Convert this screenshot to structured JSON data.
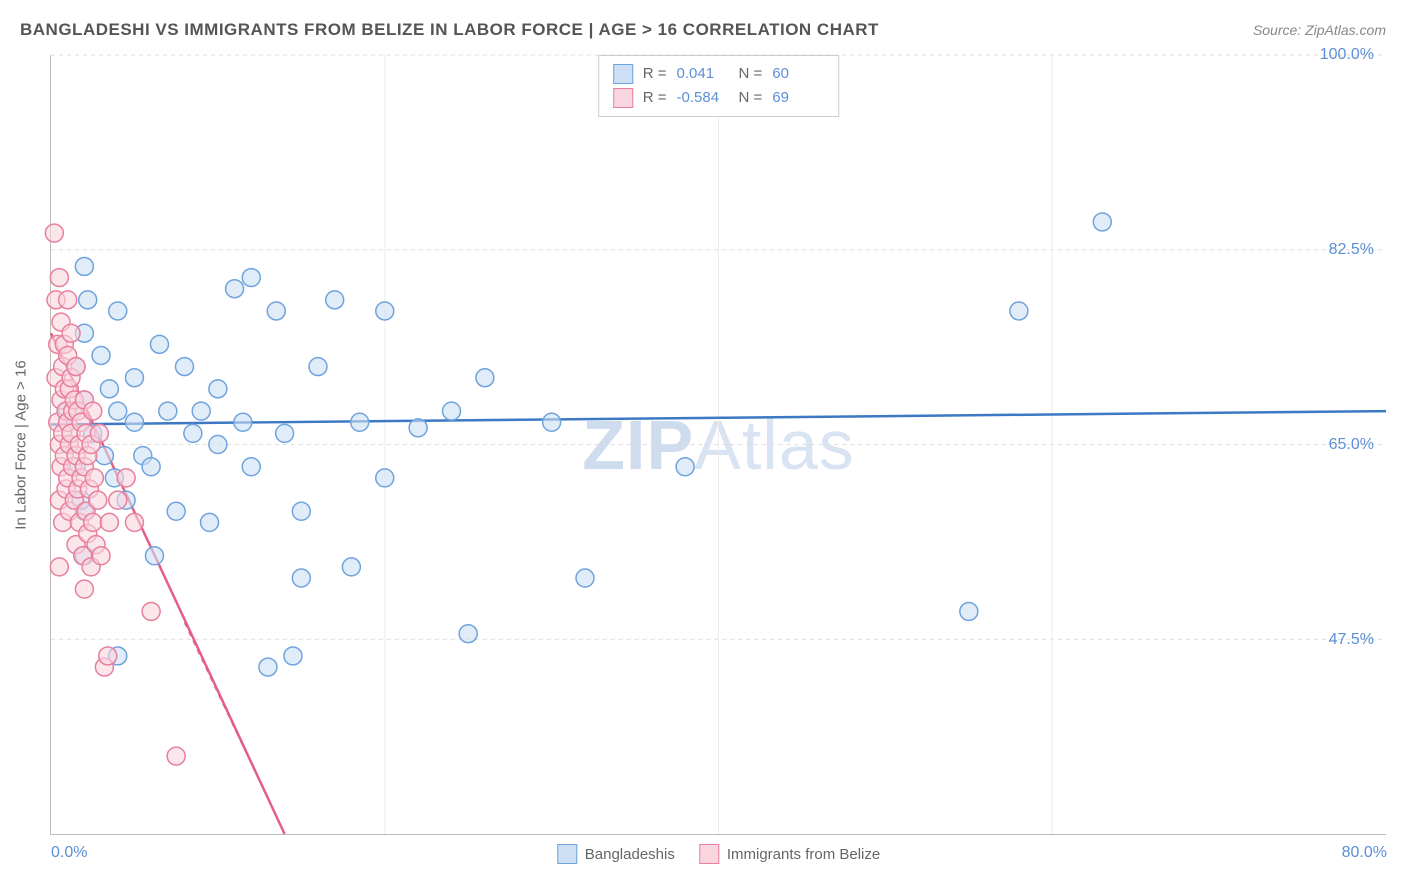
{
  "header": {
    "title": "BANGLADESHI VS IMMIGRANTS FROM BELIZE IN LABOR FORCE | AGE > 16 CORRELATION CHART",
    "source_label": "Source: ZipAtlas.com"
  },
  "watermark": {
    "prefix": "ZIP",
    "suffix": "Atlas"
  },
  "chart": {
    "type": "scatter",
    "y_axis_title": "In Labor Force | Age > 16",
    "background_color": "#ffffff",
    "grid_color": "#dddddd",
    "axis_color": "#bbbbbb",
    "tick_label_color": "#5b8fd6",
    "xlim": [
      0,
      80
    ],
    "ylim": [
      30,
      100
    ],
    "x_ticks": [
      0,
      80
    ],
    "x_tick_labels": [
      "0.0%",
      "80.0%"
    ],
    "y_ticks": [
      47.5,
      65.0,
      82.5,
      100.0
    ],
    "y_tick_labels": [
      "47.5%",
      "65.0%",
      "82.5%",
      "100.0%"
    ],
    "x_gridlines": [
      20,
      40,
      60
    ],
    "marker_radius": 9,
    "marker_stroke_width": 1.5,
    "line_width": 2.5,
    "series": [
      {
        "name": "Bangladeshis",
        "fill": "#cde0f5",
        "stroke": "#6fa3dd",
        "line_color": "#3c78c3",
        "R": "0.041",
        "N": "60",
        "trend": {
          "x1": 0,
          "y1": 66.8,
          "x2": 80,
          "y2": 68.0
        },
        "points": [
          [
            1,
            67
          ],
          [
            1,
            68
          ],
          [
            1.5,
            72
          ],
          [
            1.5,
            63
          ],
          [
            2,
            81
          ],
          [
            2,
            75
          ],
          [
            2,
            69
          ],
          [
            2,
            59
          ],
          [
            2,
            55
          ],
          [
            2.5,
            66
          ],
          [
            3,
            73
          ],
          [
            3.2,
            64
          ],
          [
            3.5,
            70
          ],
          [
            4,
            68
          ],
          [
            4,
            77
          ],
          [
            4,
            46
          ],
          [
            4.5,
            60
          ],
          [
            5,
            67
          ],
          [
            5,
            71
          ],
          [
            5.5,
            64
          ],
          [
            6,
            63
          ],
          [
            6.5,
            74
          ],
          [
            7,
            68
          ],
          [
            7.5,
            59
          ],
          [
            8,
            72
          ],
          [
            8.5,
            66
          ],
          [
            9,
            68
          ],
          [
            9.5,
            58
          ],
          [
            10,
            70
          ],
          [
            10,
            65
          ],
          [
            11,
            79
          ],
          [
            11.5,
            67
          ],
          [
            12,
            63
          ],
          [
            12,
            80
          ],
          [
            13,
            45
          ],
          [
            13.5,
            77
          ],
          [
            14,
            66
          ],
          [
            15,
            59
          ],
          [
            15,
            53
          ],
          [
            16,
            72
          ],
          [
            17,
            78
          ],
          [
            18,
            54
          ],
          [
            18.5,
            67
          ],
          [
            20,
            77
          ],
          [
            20,
            62
          ],
          [
            22,
            66.5
          ],
          [
            24,
            68
          ],
          [
            25,
            48
          ],
          [
            26,
            71
          ],
          [
            30,
            67
          ],
          [
            32,
            53
          ],
          [
            38,
            63
          ],
          [
            55,
            50
          ],
          [
            58,
            77
          ],
          [
            63,
            85
          ],
          [
            1.8,
            60
          ],
          [
            2.2,
            78
          ],
          [
            3.8,
            62
          ],
          [
            6.2,
            55
          ],
          [
            14.5,
            46
          ]
        ]
      },
      {
        "name": "Immigrants from Belize",
        "fill": "#f9d6df",
        "stroke": "#e87f9c",
        "line_color": "#e35f85",
        "R": "-0.584",
        "N": "69",
        "trend": {
          "x1": 0,
          "y1": 75,
          "x2": 14,
          "y2": 30
        },
        "trend_dashed_after": {
          "x1": 8,
          "y1": 49,
          "x2": 14,
          "y2": 30
        },
        "points": [
          [
            0.2,
            84
          ],
          [
            0.3,
            78
          ],
          [
            0.3,
            71
          ],
          [
            0.4,
            67
          ],
          [
            0.4,
            74
          ],
          [
            0.5,
            80
          ],
          [
            0.5,
            65
          ],
          [
            0.5,
            60
          ],
          [
            0.6,
            76
          ],
          [
            0.6,
            69
          ],
          [
            0.6,
            63
          ],
          [
            0.7,
            72
          ],
          [
            0.7,
            66
          ],
          [
            0.7,
            58
          ],
          [
            0.8,
            70
          ],
          [
            0.8,
            64
          ],
          [
            0.8,
            74
          ],
          [
            0.9,
            68
          ],
          [
            0.9,
            61
          ],
          [
            1.0,
            73
          ],
          [
            1.0,
            67
          ],
          [
            1.0,
            62
          ],
          [
            1.1,
            70
          ],
          [
            1.1,
            65
          ],
          [
            1.1,
            59
          ],
          [
            1.2,
            71
          ],
          [
            1.2,
            66
          ],
          [
            1.2,
            75
          ],
          [
            1.3,
            68
          ],
          [
            1.3,
            63
          ],
          [
            1.4,
            69
          ],
          [
            1.4,
            60
          ],
          [
            1.5,
            72
          ],
          [
            1.5,
            64
          ],
          [
            1.5,
            56
          ],
          [
            1.6,
            68
          ],
          [
            1.6,
            61
          ],
          [
            1.7,
            65
          ],
          [
            1.7,
            58
          ],
          [
            1.8,
            67
          ],
          [
            1.8,
            62
          ],
          [
            1.9,
            55
          ],
          [
            2.0,
            69
          ],
          [
            2.0,
            63
          ],
          [
            2.0,
            52
          ],
          [
            2.1,
            66
          ],
          [
            2.1,
            59
          ],
          [
            2.2,
            64
          ],
          [
            2.2,
            57
          ],
          [
            2.3,
            61
          ],
          [
            2.4,
            65
          ],
          [
            2.4,
            54
          ],
          [
            2.5,
            68
          ],
          [
            2.5,
            58
          ],
          [
            2.6,
            62
          ],
          [
            2.7,
            56
          ],
          [
            2.8,
            60
          ],
          [
            2.9,
            66
          ],
          [
            3.0,
            55
          ],
          [
            3.2,
            45
          ],
          [
            3.4,
            46
          ],
          [
            3.5,
            58
          ],
          [
            4.0,
            60
          ],
          [
            4.5,
            62
          ],
          [
            5.0,
            58
          ],
          [
            6.0,
            50
          ],
          [
            7.5,
            37
          ],
          [
            0.5,
            54
          ],
          [
            1.0,
            78
          ]
        ]
      }
    ],
    "legend": {
      "items": [
        "Bangladeshis",
        "Immigrants from Belize"
      ]
    }
  }
}
